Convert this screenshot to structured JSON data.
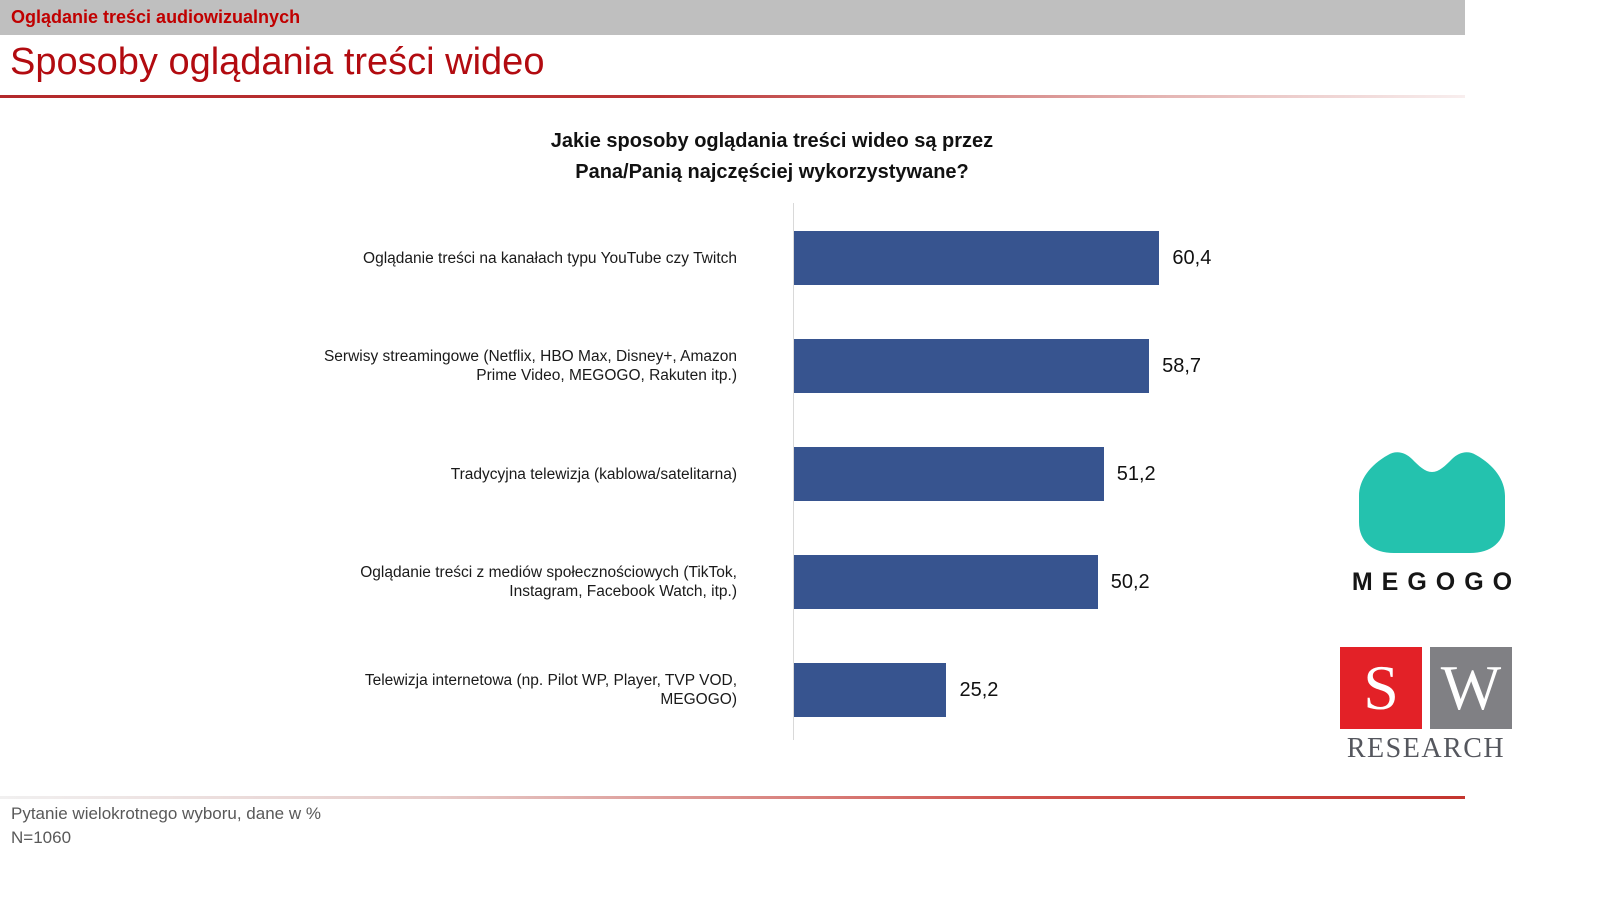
{
  "topbar": {
    "label": "Oglądanie treści audiowizualnych",
    "bg_color": "#bfbfbf",
    "text_color": "#c00000"
  },
  "header": {
    "title": "Sposoby oglądania treści wideo",
    "color": "#b20b10"
  },
  "chart_data": {
    "type": "bar",
    "orientation": "horizontal",
    "title": "Jakie sposoby oglądania treści wideo są przez\nPana/Panią najczęściej wykorzystywane?",
    "categories": [
      "Oglądanie treści na kanałach typu YouTube czy Twitch",
      "Serwisy streamingowe (Netflix, HBO Max, Disney+, Amazon Prime Video, MEGOGO, Rakuten itp.)",
      "Tradycyjna telewizja (kablowa/satelitarna)",
      "Oglądanie treści z mediów społecznościowych (TikTok, Instagram, Facebook Watch, itp.)",
      "Telewizja internetowa (np. Pilot WP, Player, TVP VOD, MEGOGO)"
    ],
    "values": [
      60.4,
      58.7,
      51.2,
      50.2,
      25.2
    ],
    "value_labels": [
      "60,4",
      "58,7",
      "51,2",
      "50,2",
      "25,2"
    ],
    "xlabel": "",
    "ylabel": "",
    "xlim": [
      0,
      100
    ],
    "grid": false,
    "legend": false,
    "bar_color": "#37548f",
    "axis_color": "#d9d9d9"
  },
  "logos": {
    "megogo": {
      "wordmark": "MEGOGO",
      "shape_color": "#24c2ae",
      "text_color": "#161616"
    },
    "sw_research": {
      "letter_s": "S",
      "letter_w": "W",
      "caption": "RESEARCH",
      "s_bg": "#e32127",
      "w_bg": "#808084",
      "caption_color": "#55575e"
    }
  },
  "footer": {
    "note": "Pytanie wielokrotnego wyboru, dane w %",
    "sample_size": "N=1060",
    "text_color": "#595959"
  }
}
